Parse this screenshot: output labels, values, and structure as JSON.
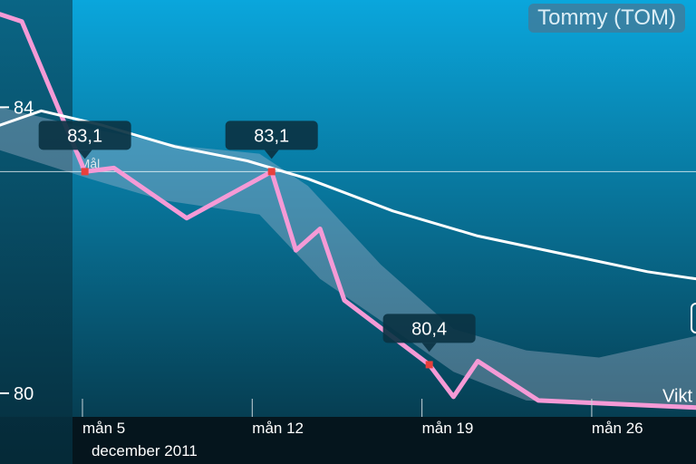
{
  "user_badge": "Tommy (TOM)",
  "colors": {
    "pink_line": "#f59ad6",
    "white_line": "#ffffff",
    "band": "#b9bfd6",
    "marker": "#e8403c",
    "bg_top": "#0aa6dc",
    "bg_bottom": "#063e52",
    "left_panel": "#07485f",
    "tooltip_bg": "#0b3343"
  },
  "chart_data": {
    "type": "line",
    "x_axis": {
      "ticks": [
        "mån 5",
        "mån 12",
        "mån 19",
        "mån 26"
      ],
      "tick_days": [
        5,
        12,
        19,
        26
      ],
      "month_label": "december 2011",
      "range": [
        1.6,
        30.3
      ]
    },
    "y_axis": {
      "ticks": [
        "84",
        "80"
      ],
      "tick_values": [
        84,
        80
      ],
      "range": [
        79.67,
        85.5
      ]
    },
    "goal": {
      "label": "Mål",
      "value": 83.1
    },
    "series": [
      {
        "name": "Vikt",
        "style": "pink",
        "points": [
          [
            1.6,
            85.3
          ],
          [
            2.5,
            85.2
          ],
          [
            5.1,
            83.1
          ],
          [
            6.3,
            83.15
          ],
          [
            9.3,
            82.45
          ],
          [
            12.8,
            83.1
          ],
          [
            13.8,
            82.0
          ],
          [
            14.8,
            82.3
          ],
          [
            15.8,
            81.3
          ],
          [
            19.3,
            80.4
          ],
          [
            20.3,
            79.95
          ],
          [
            21.3,
            80.45
          ],
          [
            23.8,
            79.9
          ],
          [
            30.3,
            79.8
          ]
        ]
      },
      {
        "name": "",
        "style": "white",
        "points": [
          [
            1.6,
            83.75
          ],
          [
            3.3,
            83.95
          ],
          [
            5.8,
            83.75
          ],
          [
            8.8,
            83.45
          ],
          [
            11.8,
            83.25
          ],
          [
            14.3,
            83.0
          ],
          [
            17.8,
            82.55
          ],
          [
            21.3,
            82.2
          ],
          [
            24.8,
            81.95
          ],
          [
            28.3,
            81.7
          ],
          [
            30.3,
            81.6
          ]
        ]
      }
    ],
    "band": {
      "upper": [
        [
          1.6,
          84.0
        ],
        [
          5.3,
          83.7
        ],
        [
          9.3,
          83.45
        ],
        [
          12.3,
          83.35
        ],
        [
          14.3,
          82.9
        ],
        [
          17.3,
          81.8
        ],
        [
          20.3,
          80.9
        ],
        [
          23.3,
          80.6
        ],
        [
          26.3,
          80.5
        ],
        [
          30.3,
          80.8
        ]
      ],
      "lower": [
        [
          1.6,
          83.4
        ],
        [
          5.3,
          83.0
        ],
        [
          8.3,
          82.7
        ],
        [
          12.3,
          82.5
        ],
        [
          14.8,
          81.6
        ],
        [
          17.8,
          80.9
        ],
        [
          20.3,
          80.3
        ],
        [
          23.3,
          79.9
        ],
        [
          30.3,
          79.8
        ]
      ]
    },
    "tooltips": [
      {
        "x": 5.1,
        "value": 83.1,
        "text": "83,1"
      },
      {
        "x": 12.8,
        "value": 83.1,
        "text": "83,1"
      },
      {
        "x": 19.3,
        "value": 80.4,
        "text": "80,4"
      }
    ],
    "grid": false,
    "legend": "inline"
  }
}
